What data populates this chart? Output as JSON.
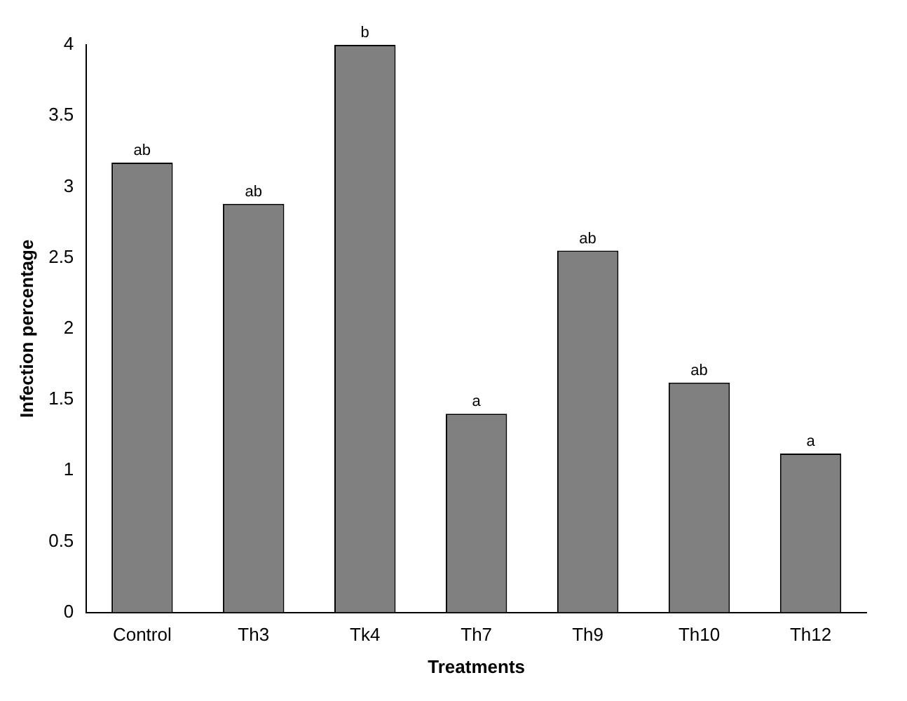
{
  "chart_data": {
    "type": "bar",
    "xlabel": "Treatments",
    "ylabel": "Infection percentage",
    "categories": [
      "Control",
      "Th3",
      "Tk4",
      "Th7",
      "Th9",
      "Th10",
      "Th12"
    ],
    "values": [
      3.17,
      2.88,
      4.0,
      1.4,
      2.55,
      1.62,
      1.12
    ],
    "color": "#808080",
    "ylim": [
      0,
      4
    ],
    "yticks": [
      0,
      0.5,
      1,
      1.5,
      2,
      2.5,
      3,
      3.5,
      4
    ],
    "grid": false,
    "legend": false,
    "annotations": [
      {
        "text": "ab",
        "x": "Control",
        "y": 3.17
      },
      {
        "text": "ab",
        "x": "Th3",
        "y": 2.88
      },
      {
        "text": "b",
        "x": "Tk4",
        "y": 4.0
      },
      {
        "text": "a",
        "x": "Th7",
        "y": 1.4
      },
      {
        "text": "ab",
        "x": "Th9",
        "y": 2.55
      },
      {
        "text": "ab",
        "x": "Th10",
        "y": 1.62
      },
      {
        "text": "a",
        "x": "Th12",
        "y": 1.12
      }
    ]
  }
}
